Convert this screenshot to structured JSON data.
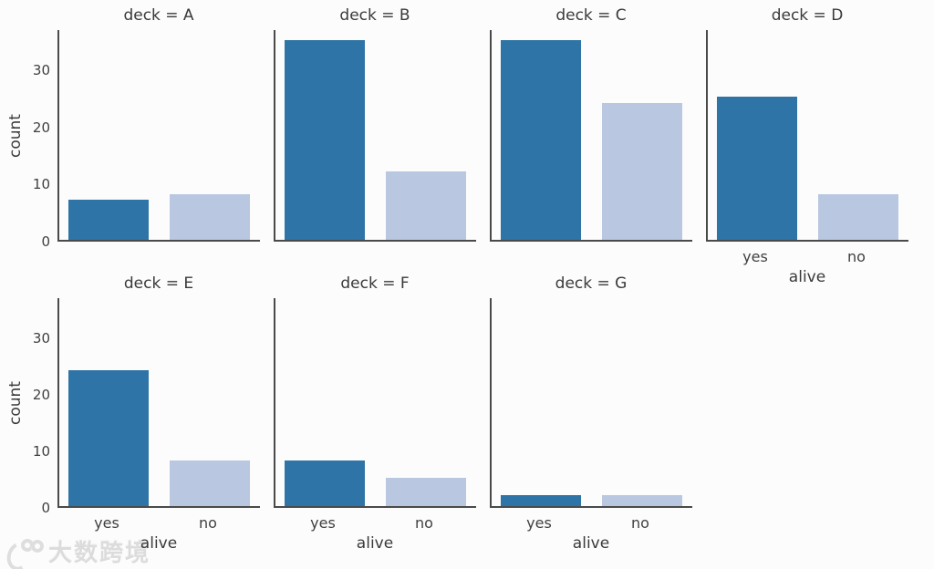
{
  "chart_data": {
    "type": "bar",
    "facet_variable": "deck",
    "x_variable": "alive",
    "categories": [
      "yes",
      "no"
    ],
    "facets": [
      {
        "deck": "A",
        "title": "deck = A",
        "values": [
          7,
          8
        ]
      },
      {
        "deck": "B",
        "title": "deck = B",
        "values": [
          35,
          12
        ]
      },
      {
        "deck": "C",
        "title": "deck = C",
        "values": [
          35,
          24
        ]
      },
      {
        "deck": "D",
        "title": "deck = D",
        "values": [
          25,
          8
        ]
      },
      {
        "deck": "E",
        "title": "deck = E",
        "values": [
          24,
          8
        ]
      },
      {
        "deck": "F",
        "title": "deck = F",
        "values": [
          8,
          5
        ]
      },
      {
        "deck": "G",
        "title": "deck = G",
        "values": [
          2,
          2
        ]
      }
    ],
    "xlabel": "alive",
    "ylabel": "count",
    "ylim": [
      0,
      37
    ],
    "yticks": [
      0,
      10,
      20,
      30
    ],
    "col_wrap": 4,
    "grid": false,
    "legend_position": "none",
    "bar_colors": [
      "#2f74a6",
      "#b9c7e1"
    ],
    "spine_color": "#4a4a4a"
  },
  "watermark": {
    "text": "大数跨境",
    "logo_icon": "hook-double-ring-logo",
    "color": "#dcdcdc"
  }
}
